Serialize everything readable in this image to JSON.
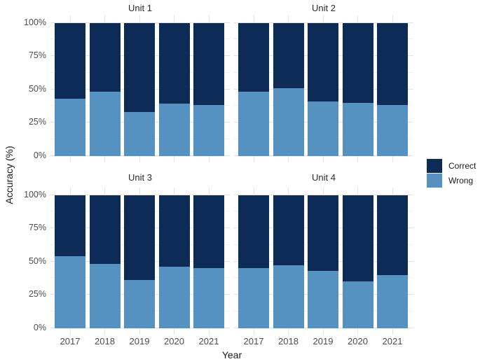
{
  "figure": {
    "y_axis_title": "Accuracy (%)",
    "x_axis_title": "Year"
  },
  "legend": {
    "position": "right",
    "items": [
      {
        "label": "Correct",
        "color": "#0c2b56"
      },
      {
        "label": "Wrong",
        "color": "#5591c1"
      }
    ]
  },
  "chart_data": {
    "type": "bar",
    "stacked": true,
    "orientation": "vertical",
    "title": "",
    "xlabel": "Year",
    "ylabel": "Accuracy (%)",
    "categories": [
      "2017",
      "2018",
      "2019",
      "2020",
      "2021"
    ],
    "y_ticks": [
      "0%",
      "25%",
      "50%",
      "75%",
      "100%"
    ],
    "ylim": [
      0,
      100
    ],
    "grid": true,
    "legend_position": "right",
    "series_colors": {
      "Correct": "#0c2b56",
      "Wrong": "#5591c1"
    },
    "facets": [
      {
        "title": "Unit 1",
        "series": [
          {
            "name": "Correct",
            "values": [
              57,
              52,
              67,
              61,
              62
            ]
          },
          {
            "name": "Wrong",
            "values": [
              43,
              48,
              33,
              39,
              38
            ]
          }
        ]
      },
      {
        "title": "Unit 2",
        "series": [
          {
            "name": "Correct",
            "values": [
              52,
              49,
              59,
              60,
              62
            ]
          },
          {
            "name": "Wrong",
            "values": [
              48,
              51,
              41,
              40,
              38
            ]
          }
        ]
      },
      {
        "title": "Unit 3",
        "series": [
          {
            "name": "Correct",
            "values": [
              46,
              52,
              64,
              54,
              55
            ]
          },
          {
            "name": "Wrong",
            "values": [
              54,
              48,
              36,
              46,
              45
            ]
          }
        ]
      },
      {
        "title": "Unit 4",
        "series": [
          {
            "name": "Correct",
            "values": [
              55,
              53,
              57,
              65,
              60
            ]
          },
          {
            "name": "Wrong",
            "values": [
              45,
              47,
              43,
              35,
              40
            ]
          }
        ]
      }
    ]
  }
}
